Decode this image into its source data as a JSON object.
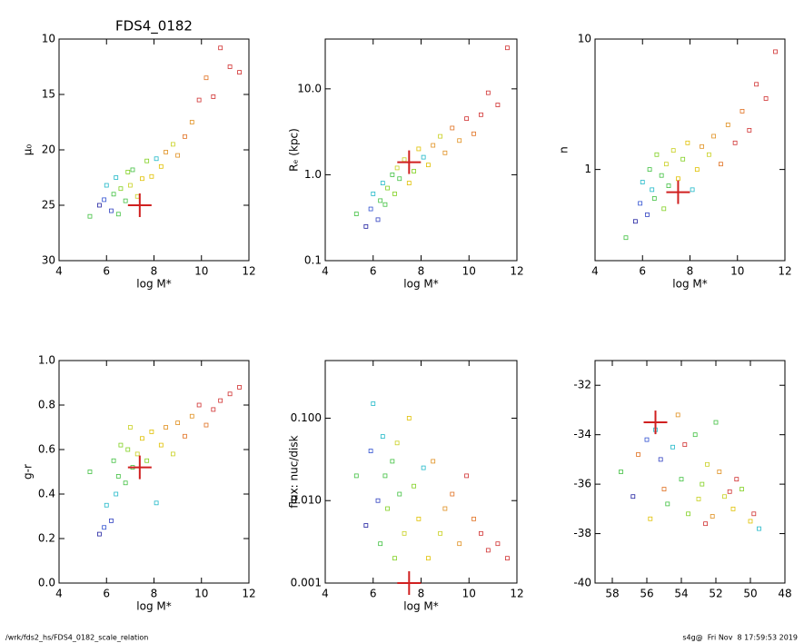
{
  "chart_data": [
    {
      "type": "scatter",
      "title": "FDS4_0182",
      "xlabel": "log M*",
      "ylabel": "μ₀",
      "xlim": [
        4,
        12
      ],
      "xticks": [
        4,
        6,
        8,
        10,
        12
      ],
      "ylim": [
        30,
        10
      ],
      "yticks": [
        10,
        15,
        20,
        25,
        30
      ],
      "x": [
        5.3,
        5.7,
        5.9,
        6.0,
        6.2,
        6.3,
        6.4,
        6.5,
        6.6,
        6.8,
        6.9,
        7.0,
        7.1,
        7.3,
        7.5,
        7.7,
        7.9,
        8.1,
        8.3,
        8.5,
        8.8,
        9.0,
        9.3,
        9.6,
        9.9,
        10.2,
        10.5,
        10.8,
        11.2,
        11.6
      ],
      "y": [
        26.0,
        25.0,
        24.5,
        23.2,
        25.5,
        24.0,
        22.5,
        25.8,
        23.5,
        24.6,
        22.0,
        23.2,
        21.8,
        24.2,
        22.6,
        21.0,
        22.4,
        20.8,
        21.5,
        20.2,
        19.5,
        20.5,
        18.8,
        17.5,
        15.5,
        13.5,
        15.2,
        10.8,
        12.5,
        13.0
      ],
      "colors": [
        "#40c040",
        "#2020a0",
        "#3050d0",
        "#20b8c8",
        "#3040c0",
        "#40c040",
        "#20b8c8",
        "#40c040",
        "#80d020",
        "#40c040",
        "#80d020",
        "#c8d020",
        "#40c040",
        "#c8d020",
        "#e0c000",
        "#80d020",
        "#e0c000",
        "#20b8c8",
        "#e0c000",
        "#e09020",
        "#c8d020",
        "#e09020",
        "#e07020",
        "#e09020",
        "#d03030",
        "#e07020",
        "#d03030",
        "#d03030",
        "#d03030",
        "#d03030"
      ],
      "highlight": {
        "x": 7.4,
        "y": 25,
        "color": "#d02020"
      }
    },
    {
      "type": "scatter",
      "xlabel": "log M*",
      "ylabel": "Rₑ (kpc)",
      "ylog": true,
      "xlim": [
        4,
        12
      ],
      "xticks": [
        4,
        6,
        8,
        10,
        12
      ],
      "ylim": [
        0.1,
        38
      ],
      "yticks": [
        0.1,
        {
          "value": 1,
          "label": "1.0"
        },
        {
          "value": 10,
          "label": "10.0"
        }
      ],
      "x": [
        5.3,
        5.7,
        5.9,
        6.0,
        6.2,
        6.3,
        6.4,
        6.5,
        6.6,
        6.8,
        6.9,
        7.0,
        7.1,
        7.3,
        7.5,
        7.7,
        7.9,
        8.1,
        8.3,
        8.5,
        8.8,
        9.0,
        9.3,
        9.6,
        9.9,
        10.2,
        10.5,
        10.8,
        11.2,
        11.6
      ],
      "y": [
        0.35,
        0.25,
        0.4,
        0.6,
        0.3,
        0.5,
        0.8,
        0.45,
        0.7,
        1.0,
        0.6,
        1.2,
        0.9,
        1.5,
        0.8,
        1.1,
        2.0,
        1.6,
        1.3,
        2.2,
        2.8,
        1.8,
        3.5,
        2.5,
        4.5,
        3.0,
        5.0,
        9.0,
        6.5,
        30
      ],
      "colors": [
        "#40c040",
        "#2020a0",
        "#3050d0",
        "#20b8c8",
        "#3040c0",
        "#40c040",
        "#20b8c8",
        "#40c040",
        "#80d020",
        "#40c040",
        "#80d020",
        "#c8d020",
        "#40c040",
        "#c8d020",
        "#e0c000",
        "#80d020",
        "#e0c000",
        "#20b8c8",
        "#e0c000",
        "#e09020",
        "#c8d020",
        "#e09020",
        "#e07020",
        "#e09020",
        "#d03030",
        "#e07020",
        "#d03030",
        "#d03030",
        "#d03030",
        "#d03030"
      ],
      "highlight": {
        "x": 7.5,
        "y": 1.4,
        "color": "#d02020"
      }
    },
    {
      "type": "scatter",
      "xlabel": "log M*",
      "ylabel": "n",
      "ylog": true,
      "xlim": [
        4,
        12
      ],
      "xticks": [
        4,
        6,
        8,
        10,
        12
      ],
      "ylim": [
        0.2,
        10
      ],
      "yticks": [
        1,
        10
      ],
      "x": [
        5.3,
        5.7,
        5.9,
        6.0,
        6.2,
        6.3,
        6.4,
        6.5,
        6.6,
        6.8,
        6.9,
        7.0,
        7.1,
        7.3,
        7.5,
        7.7,
        7.9,
        8.1,
        8.3,
        8.5,
        8.8,
        9.0,
        9.3,
        9.6,
        9.9,
        10.2,
        10.5,
        10.8,
        11.2,
        11.6
      ],
      "y": [
        0.3,
        0.4,
        0.55,
        0.8,
        0.45,
        1.0,
        0.7,
        0.6,
        1.3,
        0.9,
        0.5,
        1.1,
        0.75,
        1.4,
        0.85,
        1.2,
        1.6,
        0.7,
        1.0,
        1.5,
        1.3,
        1.8,
        1.1,
        2.2,
        1.6,
        2.8,
        2.0,
        4.5,
        3.5,
        8.0
      ],
      "colors": [
        "#40c040",
        "#2020a0",
        "#3050d0",
        "#20b8c8",
        "#3040c0",
        "#40c040",
        "#20b8c8",
        "#40c040",
        "#80d020",
        "#40c040",
        "#80d020",
        "#c8d020",
        "#40c040",
        "#c8d020",
        "#e0c000",
        "#80d020",
        "#e0c000",
        "#20b8c8",
        "#e0c000",
        "#e09020",
        "#c8d020",
        "#e09020",
        "#e07020",
        "#e09020",
        "#d03030",
        "#e07020",
        "#d03030",
        "#d03030",
        "#d03030",
        "#d03030"
      ],
      "highlight": {
        "x": 7.5,
        "y": 0.67,
        "color": "#d02020"
      }
    },
    {
      "type": "scatter",
      "xlabel": "log M*",
      "ylabel": "g-r",
      "xlim": [
        4,
        12
      ],
      "xticks": [
        4,
        6,
        8,
        10,
        12
      ],
      "ylim": [
        0,
        1
      ],
      "yticks": [
        {
          "value": 0,
          "label": "0.0"
        },
        0.2,
        0.4,
        0.6,
        0.8,
        {
          "value": 1,
          "label": "1.0"
        }
      ],
      "x": [
        5.3,
        5.7,
        5.9,
        6.0,
        6.2,
        6.3,
        6.4,
        6.5,
        6.6,
        6.8,
        6.9,
        7.0,
        7.1,
        7.3,
        7.5,
        7.7,
        7.9,
        8.1,
        8.3,
        8.5,
        8.8,
        9.0,
        9.3,
        9.6,
        9.9,
        10.2,
        10.5,
        10.8,
        11.2,
        11.6
      ],
      "y": [
        0.5,
        0.22,
        0.25,
        0.35,
        0.28,
        0.55,
        0.4,
        0.48,
        0.62,
        0.45,
        0.6,
        0.7,
        0.52,
        0.58,
        0.65,
        0.55,
        0.68,
        0.36,
        0.62,
        0.7,
        0.58,
        0.72,
        0.66,
        0.75,
        0.8,
        0.71,
        0.78,
        0.82,
        0.85,
        0.88
      ],
      "colors": [
        "#40c040",
        "#2020a0",
        "#3050d0",
        "#20b8c8",
        "#3040c0",
        "#40c040",
        "#20b8c8",
        "#40c040",
        "#80d020",
        "#40c040",
        "#80d020",
        "#c8d020",
        "#40c040",
        "#c8d020",
        "#e0c000",
        "#80d020",
        "#e0c000",
        "#20b8c8",
        "#e0c000",
        "#e09020",
        "#c8d020",
        "#e09020",
        "#e07020",
        "#e09020",
        "#d03030",
        "#e07020",
        "#d03030",
        "#d03030",
        "#d03030",
        "#d03030"
      ],
      "highlight": {
        "x": 7.4,
        "y": 0.52,
        "color": "#d02020"
      }
    },
    {
      "type": "scatter",
      "xlabel": "log M*",
      "ylabel": "flux: nuc/disk",
      "ylog": true,
      "xlim": [
        4,
        12
      ],
      "xticks": [
        4,
        6,
        8,
        10,
        12
      ],
      "ylim": [
        0.001,
        0.5
      ],
      "yticks": [
        0.001,
        {
          "value": 0.01,
          "label": "0.010"
        },
        {
          "value": 0.1,
          "label": "0.100"
        }
      ],
      "x": [
        5.3,
        5.7,
        5.9,
        6.0,
        6.2,
        6.3,
        6.4,
        6.5,
        6.6,
        6.8,
        6.9,
        7.0,
        7.1,
        7.3,
        7.5,
        7.7,
        7.9,
        8.1,
        8.3,
        8.5,
        8.8,
        9.0,
        9.3,
        9.6,
        9.9,
        10.2,
        10.5,
        10.8,
        11.2,
        11.6
      ],
      "y": [
        0.02,
        0.005,
        0.04,
        0.15,
        0.01,
        0.003,
        0.06,
        0.02,
        0.008,
        0.03,
        0.002,
        0.05,
        0.012,
        0.004,
        0.1,
        0.015,
        0.006,
        0.025,
        0.002,
        0.03,
        0.004,
        0.008,
        0.012,
        0.003,
        0.02,
        0.006,
        0.004,
        0.0025,
        0.003,
        0.002
      ],
      "colors": [
        "#40c040",
        "#2020a0",
        "#3050d0",
        "#20b8c8",
        "#3040c0",
        "#40c040",
        "#20b8c8",
        "#40c040",
        "#80d020",
        "#40c040",
        "#80d020",
        "#c8d020",
        "#40c040",
        "#c8d020",
        "#e0c000",
        "#80d020",
        "#e0c000",
        "#20b8c8",
        "#e0c000",
        "#e09020",
        "#c8d020",
        "#e09020",
        "#e07020",
        "#e09020",
        "#d03030",
        "#e07020",
        "#d03030",
        "#d03030",
        "#d03030",
        "#d03030"
      ],
      "highlight": {
        "x": 7.5,
        "y": 0.001,
        "color": "#d02020"
      }
    },
    {
      "type": "scatter",
      "xlim": [
        59,
        48
      ],
      "xticks": [
        58,
        56,
        54,
        52,
        50,
        48
      ],
      "ylim": [
        -40,
        -31
      ],
      "yticks": [
        -32,
        -34,
        -36,
        -38,
        -40
      ],
      "x": [
        57.5,
        56.8,
        56.0,
        55.5,
        55.2,
        54.8,
        54.5,
        54.0,
        53.6,
        53.2,
        52.8,
        52.5,
        52.0,
        51.5,
        51.0,
        50.5,
        50.0,
        49.5,
        55.8,
        54.2,
        53.0,
        51.8,
        56.5,
        52.2,
        50.8,
        55.0,
        53.8,
        52.6,
        51.2,
        49.8
      ],
      "y": [
        -35.5,
        -36.5,
        -34.2,
        -33.8,
        -35.0,
        -36.8,
        -34.5,
        -35.8,
        -37.2,
        -34.0,
        -36.0,
        -35.2,
        -33.5,
        -36.5,
        -37.0,
        -36.2,
        -37.5,
        -37.8,
        -37.4,
        -33.2,
        -36.6,
        -35.5,
        -34.8,
        -37.3,
        -35.8,
        -36.2,
        -34.4,
        -37.6,
        -36.3,
        -37.2
      ],
      "colors": [
        "#40c040",
        "#2020a0",
        "#3050d0",
        "#20b8c8",
        "#3040c0",
        "#40c040",
        "#20b8c8",
        "#40c040",
        "#80d020",
        "#40c040",
        "#80d020",
        "#c8d020",
        "#40c040",
        "#c8d020",
        "#e0c000",
        "#80d020",
        "#e0c000",
        "#20b8c8",
        "#e0c000",
        "#e09020",
        "#c8d020",
        "#e09020",
        "#e07020",
        "#e09020",
        "#d03030",
        "#e07020",
        "#d03030",
        "#d03030",
        "#d03030",
        "#d03030"
      ],
      "highlight": {
        "x": 55.5,
        "y": -33.5,
        "color": "#d02020"
      }
    }
  ],
  "footer": {
    "left": "/wrk/fds2_hs/FDS4_0182_scale_relation",
    "right": "s4g@  Fri Nov  8 17:59:53 2019"
  }
}
